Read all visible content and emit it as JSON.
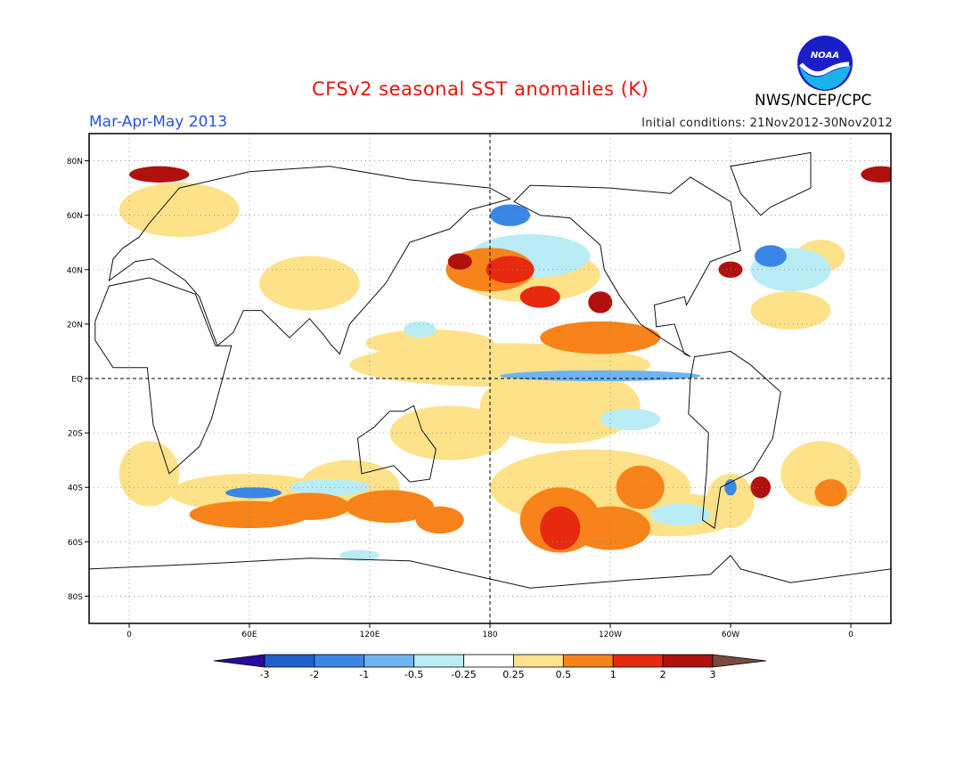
{
  "title": "CFSv2 seasonal SST anomalies (K)",
  "period": "Mar-Apr-May 2013",
  "initial_conditions": "Initial conditions: 21Nov2012-30Nov2012",
  "agency": "NWS/NCEP/CPC",
  "logo_text": "NOAA",
  "map": {
    "lat_labels": [
      "80N",
      "60N",
      "40N",
      "20N",
      "EQ",
      "20S",
      "40S",
      "60S",
      "80S"
    ],
    "lat_values": [
      80,
      60,
      40,
      20,
      0,
      -20,
      -40,
      -60,
      -80
    ],
    "lon_labels": [
      "0",
      "60E",
      "120E",
      "180",
      "120W",
      "60W",
      "0"
    ],
    "lon_values": [
      0,
      60,
      120,
      180,
      240,
      300,
      360
    ],
    "lon_range": [
      -20,
      380
    ],
    "lat_range": [
      -90,
      90
    ]
  },
  "colorbar": {
    "labels": [
      "-3",
      "-2",
      "-1",
      "-0.5",
      "-0.25",
      "0.25",
      "0.5",
      "1",
      "2",
      "3"
    ],
    "colors": [
      "#2a0a9a",
      "#1f5fd0",
      "#3a86e6",
      "#6fb4f2",
      "#b9ecf5",
      "#ffffff",
      "#fde28a",
      "#f7831a",
      "#e7290f",
      "#b0110e",
      "#7b4a3e"
    ]
  },
  "anomaly_colors": {
    "strong_warm": "#b0110e",
    "warm": "#e7290f",
    "moderate_warm": "#f7831a",
    "weak_warm": "#fde28a",
    "weak_cold": "#b9ecf5",
    "moderate_cold": "#6fb4f2",
    "cold": "#3a86e6"
  }
}
